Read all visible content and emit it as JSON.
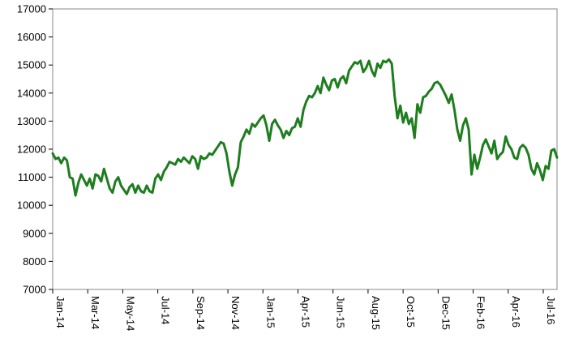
{
  "chart_data": {
    "type": "line",
    "title": "",
    "xlabel": "",
    "ylabel": "",
    "ylim": [
      7000,
      17000
    ],
    "yticks": [
      "7000",
      "8000",
      "9000",
      "10000",
      "11000",
      "12000",
      "13000",
      "14000",
      "15000",
      "16000",
      "17000"
    ],
    "xticks": [
      "Jan-14",
      "Mar-14",
      "May-14",
      "Jul-14",
      "Sep-14",
      "Nov-14",
      "Jan-15",
      "Apr-15",
      "Jun-15",
      "Aug-15",
      "Oct-15",
      "Dec-15",
      "Feb-16",
      "Apr-16",
      "Jul-16"
    ],
    "grid": false,
    "legend": "none",
    "line_color": "#1e7d1e",
    "series": [
      {
        "values": [
          11850,
          11650,
          11700,
          11500,
          11700,
          11600,
          11000,
          10950,
          10350,
          10800,
          11100,
          10900,
          10700,
          10950,
          10600,
          11100,
          11050,
          10850,
          11300,
          10950,
          10600,
          10450,
          10850,
          11000,
          10700,
          10550,
          10400,
          10650,
          10750,
          10450,
          10700,
          10500,
          10450,
          10700,
          10500,
          10450,
          10950,
          11100,
          10900,
          11200,
          11350,
          11550,
          11500,
          11450,
          11650,
          11550,
          11700,
          11600,
          11500,
          11750,
          11650,
          11300,
          11750,
          11650,
          11700,
          11850,
          11800,
          11950,
          12100,
          12250,
          12200,
          11850,
          11200,
          10700,
          11100,
          11350,
          12250,
          12450,
          12700,
          12550,
          12900,
          12800,
          12950,
          13100,
          13200,
          12850,
          12300,
          12900,
          13050,
          12850,
          12700,
          12400,
          12650,
          12500,
          12750,
          12800,
          13100,
          12800,
          13400,
          13700,
          13900,
          13850,
          14000,
          14250,
          14000,
          14550,
          14300,
          14100,
          14450,
          14500,
          14200,
          14500,
          14600,
          14350,
          14800,
          14950,
          15100,
          15050,
          15150,
          14750,
          14900,
          15150,
          14800,
          14600,
          15050,
          14900,
          15150,
          15100,
          15200,
          15050,
          13900,
          13100,
          13550,
          12950,
          13300,
          12900,
          13100,
          12400,
          13600,
          13300,
          13850,
          13900,
          14050,
          14150,
          14350,
          14400,
          14300,
          14100,
          13900,
          13650,
          13950,
          13400,
          12700,
          12300,
          12850,
          13100,
          12700,
          11100,
          11800,
          11300,
          11700,
          12150,
          12350,
          12100,
          11850,
          12300,
          11650,
          11800,
          11900,
          12450,
          12150,
          12000,
          11700,
          11650,
          12050,
          12150,
          12050,
          11800,
          11300,
          11100,
          11500,
          11250,
          10900,
          11400,
          11300,
          11950,
          12000,
          11700
        ]
      }
    ]
  }
}
